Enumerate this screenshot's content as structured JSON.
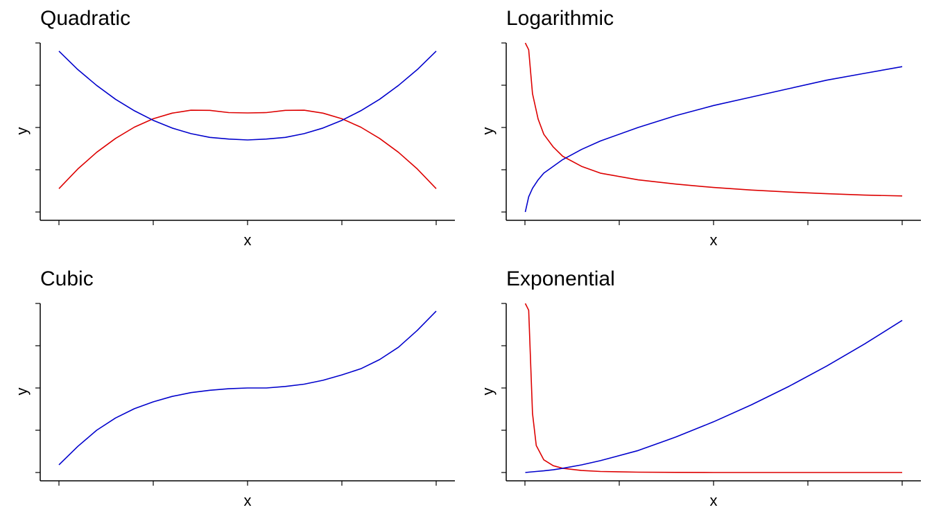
{
  "chart_data": [
    {
      "type": "line",
      "title": "Quadratic",
      "xlabel": "x",
      "ylabel": "y",
      "xlim": [
        0,
        10
      ],
      "ylim": [
        -0.45,
        1.0
      ],
      "grid": false,
      "x": [
        0,
        0.5,
        1,
        1.5,
        2,
        2.5,
        3,
        3.5,
        4,
        4.5,
        5,
        5.5,
        6,
        6.5,
        7,
        7.5,
        8,
        8.5,
        9,
        9.5,
        10
      ],
      "series": [
        {
          "color": "#dd0000",
          "values": [
            -0.25,
            -0.081,
            0.062,
            0.181,
            0.278,
            0.35,
            0.398,
            0.423,
            0.422,
            0.403,
            0.4,
            0.403,
            0.422,
            0.423,
            0.398,
            0.35,
            0.278,
            0.181,
            0.062,
            -0.081,
            -0.25
          ]
        },
        {
          "color": "#0000cc",
          "values": [
            0.93,
            0.772,
            0.636,
            0.517,
            0.418,
            0.336,
            0.27,
            0.222,
            0.19,
            0.176,
            0.168,
            0.176,
            0.19,
            0.222,
            0.27,
            0.336,
            0.418,
            0.517,
            0.636,
            0.772,
            0.93
          ]
        }
      ]
    },
    {
      "type": "line",
      "title": "Logarithmic",
      "xlabel": "x",
      "ylabel": "y",
      "xlim": [
        0,
        10
      ],
      "ylim": [
        0,
        1
      ],
      "grid": false,
      "x": [
        0.01,
        0.1,
        0.2,
        0.35,
        0.5,
        0.75,
        1,
        1.5,
        2,
        3,
        4,
        5,
        6,
        7,
        8,
        9,
        10
      ],
      "series": [
        {
          "color": "#dd0000",
          "values": [
            1.0,
            0.96,
            0.7,
            0.55,
            0.46,
            0.385,
            0.33,
            0.27,
            0.23,
            0.19,
            0.165,
            0.145,
            0.13,
            0.118,
            0.108,
            0.1,
            0.095
          ]
        },
        {
          "color": "#0000cc",
          "values": [
            0.0,
            0.09,
            0.14,
            0.19,
            0.23,
            0.27,
            0.31,
            0.37,
            0.42,
            0.5,
            0.57,
            0.63,
            0.68,
            0.73,
            0.78,
            0.82,
            0.86
          ]
        }
      ]
    },
    {
      "type": "line",
      "title": "Cubic",
      "xlabel": "x",
      "ylabel": "y",
      "xlim": [
        0,
        10
      ],
      "ylim": [
        -1.1,
        1.1
      ],
      "grid": false,
      "x": [
        0,
        0.5,
        1,
        1.5,
        2,
        2.5,
        3,
        3.5,
        4,
        4.5,
        5,
        5.5,
        6,
        6.5,
        7,
        7.5,
        8,
        8.5,
        9,
        9.5,
        10
      ],
      "series": [
        {
          "color": "#0000cc",
          "values": [
            -1.0,
            -0.76,
            -0.55,
            -0.39,
            -0.27,
            -0.18,
            -0.11,
            -0.06,
            -0.03,
            -0.01,
            0.0,
            0.0,
            0.02,
            0.05,
            0.1,
            0.17,
            0.25,
            0.37,
            0.53,
            0.75,
            1.0
          ]
        }
      ]
    },
    {
      "type": "line",
      "title": "Exponential",
      "xlabel": "x",
      "ylabel": "y",
      "xlim": [
        0,
        10
      ],
      "ylim": [
        0,
        1
      ],
      "grid": false,
      "x": [
        0.01,
        0.1,
        0.2,
        0.3,
        0.5,
        0.75,
        1,
        1.5,
        2,
        3,
        4,
        5,
        6,
        7,
        8,
        9,
        10
      ],
      "series": [
        {
          "color": "#dd0000",
          "values": [
            1.0,
            0.96,
            0.35,
            0.16,
            0.075,
            0.04,
            0.025,
            0.012,
            0.006,
            0.002,
            0.001,
            0.0,
            0.0,
            0.0,
            0.0,
            0.0,
            0.0
          ]
        },
        {
          "color": "#0000cc",
          "values": [
            0.0,
            0.002,
            0.004,
            0.006,
            0.01,
            0.016,
            0.025,
            0.045,
            0.07,
            0.13,
            0.21,
            0.3,
            0.4,
            0.51,
            0.63,
            0.76,
            0.9
          ]
        }
      ]
    }
  ]
}
